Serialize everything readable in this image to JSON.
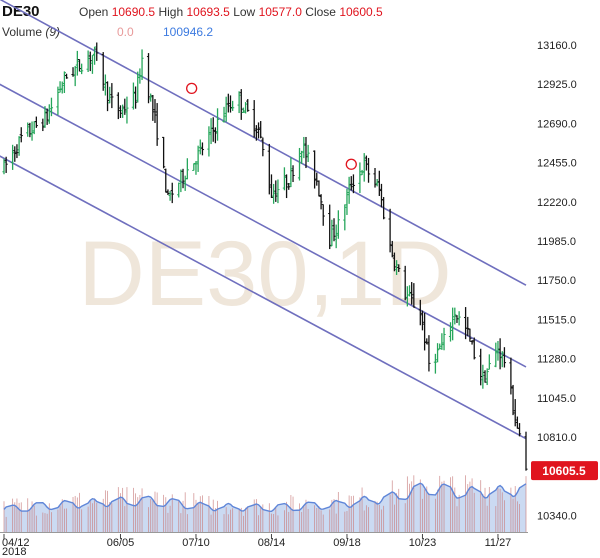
{
  "header": {
    "symbol": "DE30",
    "open_label": "Open",
    "open_value": "10690.5",
    "high_label": "High",
    "high_value": "10693.5",
    "low_label": "Low",
    "low_value": "10577.0",
    "close_label": "Close",
    "close_value": "10600.5",
    "volume_label": "Volume",
    "volume_period": "(9)",
    "volume_value": "0.0",
    "volume_ma_value": "100946.2"
  },
  "watermark": "DE30,1D",
  "colors": {
    "up": "#26a65b",
    "down": "#111111",
    "channel": "#6f6fbe",
    "accent": "#e0141e",
    "volume_fill": "#b9cdee",
    "volume_line": "#5f86d8",
    "volume_bar": "#c97f7f",
    "marker": "#e0141e"
  },
  "chart_data": {
    "type": "ohlc",
    "y_ticks": [
      "13160.0",
      "12925.0",
      "12690.0",
      "12455.0",
      "12220.0",
      "11985.0",
      "11750.0",
      "11515.0",
      "11280.0",
      "11045.0",
      "10810.0",
      "10340.0"
    ],
    "x_ticks": [
      "04/12",
      "06/05",
      "07/10",
      "08/14",
      "09/18",
      "10/23",
      "11/27"
    ],
    "x_year": "2018",
    "last_price": "10605.5",
    "trend_channel": {
      "upper": [
        [
          "2018-04-12",
          13440
        ],
        [
          "2018-12-10",
          11720
        ]
      ],
      "middle": [
        [
          "2018-04-12",
          12930
        ],
        [
          "2018-12-10",
          11230
        ]
      ],
      "lower": [
        [
          "2018-04-12",
          12500
        ],
        [
          "2018-12-10",
          10800
        ]
      ]
    },
    "markers": [
      [
        "2018-07-08",
        12900
      ],
      [
        "2018-09-20",
        12445
      ]
    ],
    "price_path": [
      [
        "2018-04-12",
        12420
      ],
      [
        "2018-04-20",
        12600
      ],
      [
        "2018-05-02",
        12730
      ],
      [
        "2018-05-10",
        12960
      ],
      [
        "2018-05-18",
        13050
      ],
      [
        "2018-05-24",
        13110
      ],
      [
        "2018-05-31",
        12830
      ],
      [
        "2018-06-05",
        12760
      ],
      [
        "2018-06-12",
        12850
      ],
      [
        "2018-06-15",
        13080
      ],
      [
        "2018-06-22",
        12640
      ],
      [
        "2018-06-27",
        12230
      ],
      [
        "2018-07-03",
        12360
      ],
      [
        "2018-07-12",
        12520
      ],
      [
        "2018-07-25",
        12800
      ],
      [
        "2018-07-30",
        12830
      ],
      [
        "2018-08-08",
        12650
      ],
      [
        "2018-08-14",
        12270
      ],
      [
        "2018-08-22",
        12350
      ],
      [
        "2018-08-28",
        12560
      ],
      [
        "2018-09-04",
        12350
      ],
      [
        "2018-09-10",
        12000
      ],
      [
        "2018-09-14",
        12080
      ],
      [
        "2018-09-20",
        12330
      ],
      [
        "2018-09-26",
        12440
      ],
      [
        "2018-10-03",
        12290
      ],
      [
        "2018-10-08",
        11950
      ],
      [
        "2018-10-15",
        11670
      ],
      [
        "2018-10-22",
        11560
      ],
      [
        "2018-10-26",
        11250
      ],
      [
        "2018-11-01",
        11350
      ],
      [
        "2018-11-07",
        11560
      ],
      [
        "2018-11-13",
        11430
      ],
      [
        "2018-11-20",
        11150
      ],
      [
        "2018-11-27",
        11340
      ],
      [
        "2018-11-30",
        11270
      ],
      [
        "2018-12-04",
        10990
      ],
      [
        "2018-12-07",
        10800
      ],
      [
        "2018-12-10",
        10605
      ]
    ],
    "volume_path": [
      [
        "2018-04-12",
        0.45
      ],
      [
        "2018-05-01",
        0.52
      ],
      [
        "2018-06-01",
        0.6
      ],
      [
        "2018-06-20",
        0.62
      ],
      [
        "2018-07-15",
        0.5
      ],
      [
        "2018-08-15",
        0.48
      ],
      [
        "2018-09-15",
        0.55
      ],
      [
        "2018-10-10",
        0.7
      ],
      [
        "2018-10-25",
        0.88
      ],
      [
        "2018-11-10",
        0.78
      ],
      [
        "2018-11-27",
        0.8
      ],
      [
        "2018-12-10",
        0.85
      ]
    ]
  }
}
